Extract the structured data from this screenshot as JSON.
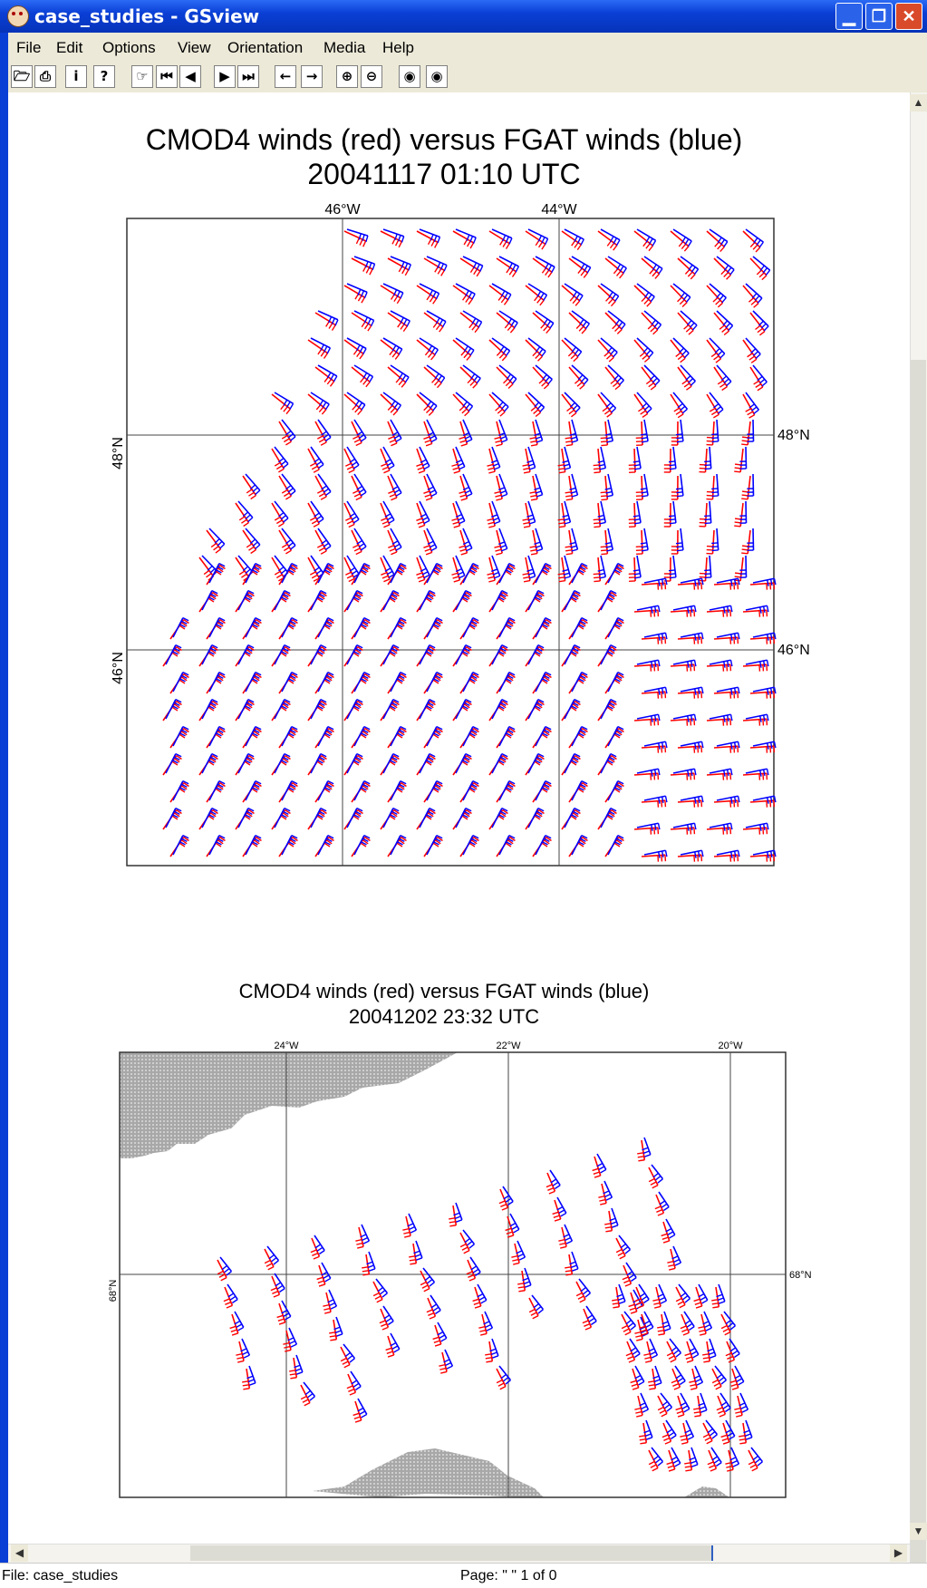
{
  "window": {
    "title": "case_studies - GSview"
  },
  "menu": [
    "File",
    "Edit",
    "Options",
    "View",
    "Orientation",
    "Media",
    "Help"
  ],
  "toolbar": {
    "icons": [
      "open-icon",
      "print-icon",
      "info-icon",
      "help-icon",
      "go-to-page-icon",
      "first-page-icon",
      "previous-page-icon",
      "next-page-icon",
      "last-page-icon",
      "back-icon",
      "forward-icon",
      "zoom-in-icon",
      "zoom-out-icon",
      "magnify-1-icon",
      "magnify-2-icon"
    ],
    "glyphs": [
      "🗁",
      "⎙",
      "i",
      "?",
      "☞",
      "⏮",
      "◀",
      "▶",
      "⏭",
      "←",
      "→",
      "⊕",
      "⊖",
      "◉",
      "◉"
    ]
  },
  "chart_data": [
    {
      "type": "other",
      "title": "CMOD4 winds (red) versus FGAT winds (blue)",
      "subtitle": "20041117 01:10 UTC",
      "lon_ticks": [
        "46°W",
        "44°W"
      ],
      "lat_ticks": [
        "48°N",
        "46°N"
      ],
      "right_ticks": [
        "48°N",
        "46°N"
      ],
      "series": [
        {
          "name": "CMOD4 winds",
          "color": "#ff0000"
        },
        {
          "name": "FGAT winds",
          "color": "#0000ff"
        }
      ]
    },
    {
      "type": "other",
      "title": "CMOD4 winds (red) versus FGAT winds (blue)",
      "subtitle": "20041202 23:32 UTC",
      "lon_ticks": [
        "24°W",
        "22°W",
        "20°W"
      ],
      "lat_ticks": [
        "68°N"
      ],
      "right_ticks": [
        "68°N"
      ],
      "series": [
        {
          "name": "CMOD4 winds",
          "color": "#ff0000"
        },
        {
          "name": "FGAT winds",
          "color": "#0000ff"
        }
      ]
    }
  ],
  "status": {
    "file": "File: case_studies",
    "page": "Page: \" \"  1 of 0"
  }
}
